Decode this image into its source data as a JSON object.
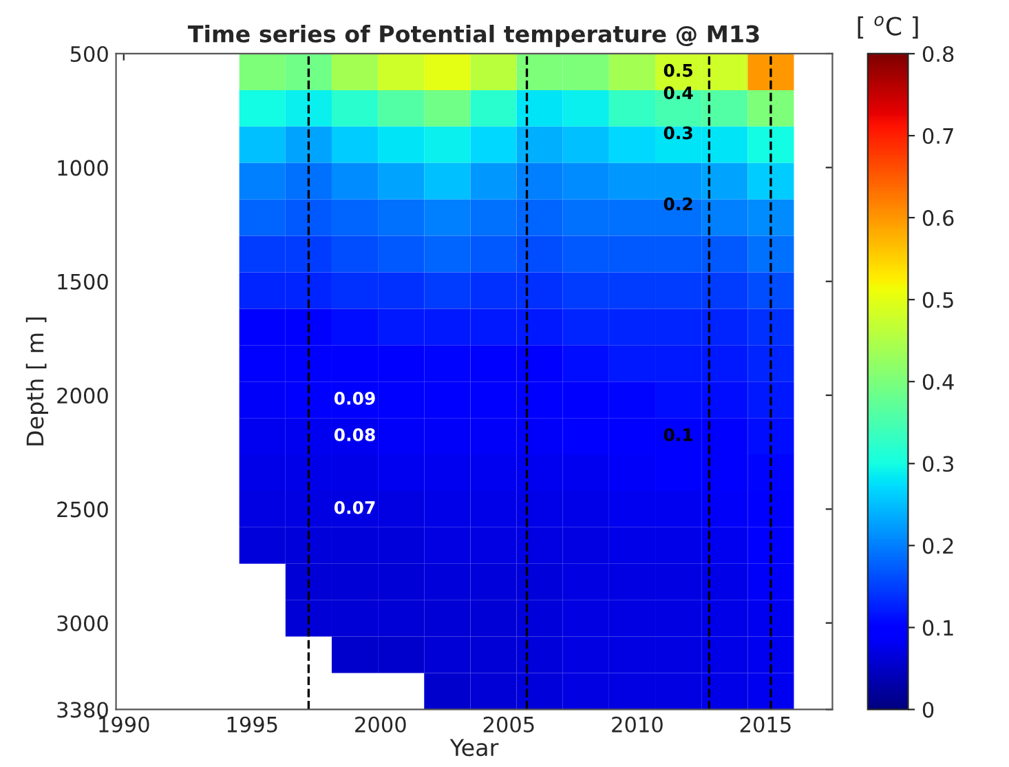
{
  "chart_data": {
    "type": "heatmap",
    "title": "Time series of Potential temperature @ M13",
    "xlabel": "Year",
    "ylabel": "Depth [ m ]",
    "clabel": "[ $^{o}$C ]",
    "x": [
      1995.4,
      1997.2,
      1999.0,
      2000.8,
      2002.6,
      2004.4,
      2006.2,
      2008.0,
      2009.8,
      2011.6,
      2013.4,
      2015.2
    ],
    "y": [
      580,
      740,
      900,
      1060,
      1220,
      1380,
      1540,
      1700,
      1860,
      2020,
      2180,
      2340,
      2500,
      2660,
      2820,
      2980,
      3140,
      3300
    ],
    "cells": [
      [
        0.4,
        0.39,
        0.44,
        0.48,
        0.5,
        0.46,
        0.4,
        0.4,
        0.44,
        0.48,
        0.48,
        0.6
      ],
      [
        0.3,
        0.29,
        0.32,
        0.36,
        0.39,
        0.32,
        0.28,
        0.29,
        0.33,
        0.35,
        0.36,
        0.4
      ],
      [
        0.25,
        0.23,
        0.26,
        0.28,
        0.29,
        0.27,
        0.24,
        0.25,
        0.27,
        0.28,
        0.28,
        0.3
      ],
      [
        0.2,
        0.19,
        0.21,
        0.23,
        0.25,
        0.22,
        0.2,
        0.21,
        0.22,
        0.22,
        0.23,
        0.26
      ],
      [
        0.18,
        0.17,
        0.18,
        0.19,
        0.2,
        0.19,
        0.18,
        0.19,
        0.19,
        0.19,
        0.2,
        0.21
      ],
      [
        0.15,
        0.15,
        0.16,
        0.17,
        0.18,
        0.17,
        0.16,
        0.17,
        0.17,
        0.17,
        0.17,
        0.19
      ],
      [
        0.13,
        0.13,
        0.14,
        0.14,
        0.15,
        0.14,
        0.14,
        0.15,
        0.15,
        0.15,
        0.15,
        0.16
      ],
      [
        0.1,
        0.1,
        0.11,
        0.12,
        0.12,
        0.12,
        0.12,
        0.13,
        0.13,
        0.13,
        0.13,
        0.14
      ],
      [
        0.095,
        0.095,
        0.095,
        0.1,
        0.105,
        0.1,
        0.1,
        0.11,
        0.12,
        0.12,
        0.12,
        0.13
      ],
      [
        0.085,
        0.09,
        0.09,
        0.09,
        0.095,
        0.095,
        0.095,
        0.095,
        0.105,
        0.11,
        0.11,
        0.12
      ],
      [
        0.08,
        0.08,
        0.08,
        0.085,
        0.085,
        0.085,
        0.085,
        0.09,
        0.095,
        0.1,
        0.1,
        0.11
      ],
      [
        0.075,
        0.075,
        0.075,
        0.08,
        0.08,
        0.08,
        0.08,
        0.08,
        0.085,
        0.09,
        0.095,
        0.105
      ],
      [
        0.07,
        0.07,
        0.07,
        0.07,
        0.075,
        0.075,
        0.075,
        0.075,
        0.08,
        0.08,
        0.085,
        0.1
      ],
      [
        0.065,
        0.065,
        0.065,
        0.065,
        0.07,
        0.07,
        0.07,
        0.07,
        0.075,
        0.075,
        0.08,
        0.09
      ],
      [
        null,
        0.06,
        0.06,
        0.06,
        0.065,
        0.065,
        0.065,
        0.07,
        0.07,
        0.07,
        0.075,
        0.085
      ],
      [
        null,
        0.06,
        0.06,
        0.06,
        0.06,
        0.06,
        0.065,
        0.07,
        0.07,
        0.07,
        0.075,
        0.08
      ],
      [
        null,
        null,
        0.055,
        0.055,
        0.06,
        0.06,
        0.065,
        0.07,
        0.07,
        0.07,
        0.075,
        0.08
      ],
      [
        null,
        null,
        null,
        null,
        0.055,
        0.06,
        0.065,
        0.07,
        0.07,
        0.07,
        0.075,
        0.08
      ]
    ],
    "clim": [
      0,
      0.8
    ],
    "cticks": [
      0,
      0.1,
      0.2,
      0.3,
      0.4,
      0.5,
      0.6,
      0.7,
      0.8
    ],
    "xlim": [
      1989.7,
      2017.6
    ],
    "xticks": [
      1990,
      1995,
      2000,
      2005,
      2010,
      2015
    ],
    "ylim": [
      3380,
      500
    ],
    "yticks": [
      500,
      1000,
      1500,
      2000,
      2500,
      3000,
      3380
    ],
    "ref_lines": [
      {
        "axis": "x",
        "value": 1997.2,
        "color": "#000000",
        "line_style": "dashed"
      },
      {
        "axis": "x",
        "value": 2005.7,
        "color": "#000000",
        "line_style": "dashed"
      },
      {
        "axis": "x",
        "value": 2012.8,
        "color": "#000000",
        "line_style": "dashed"
      },
      {
        "axis": "x",
        "value": 2015.2,
        "color": "#000000",
        "line_style": "dashed"
      }
    ],
    "annotations": [
      "0.5",
      "0.4",
      "0.3",
      "0.2",
      "0.1",
      "0.09",
      "0.08",
      "0.07"
    ]
  }
}
